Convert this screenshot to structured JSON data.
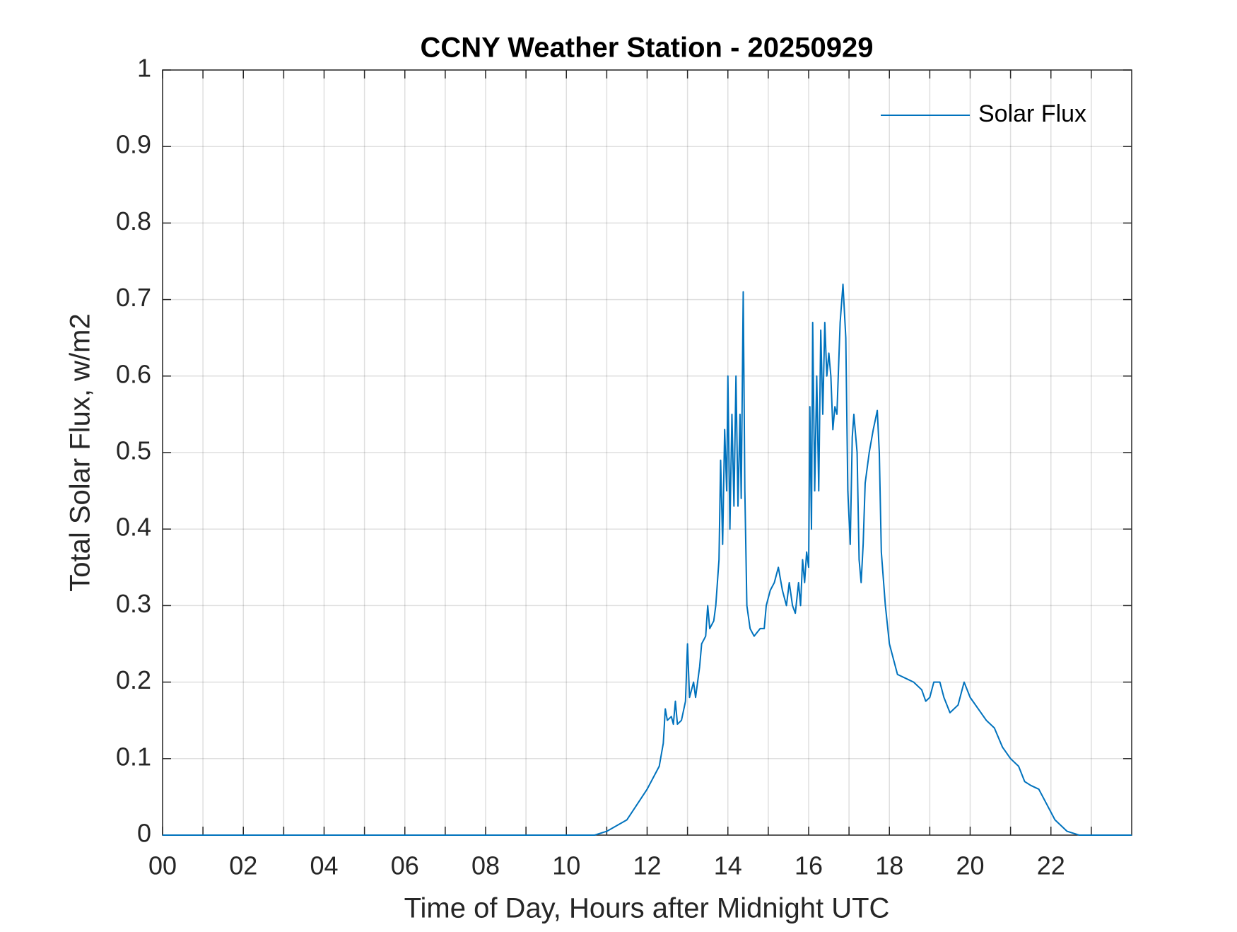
{
  "chart_data": {
    "type": "line",
    "title": "CCNY Weather Station - 20250929",
    "x_label": "Time of Day, Hours after Midnight UTC",
    "y_label": "Total Solar Flux, w/m2",
    "xlim": [
      0,
      24
    ],
    "xticks": [
      {
        "value": 0,
        "label": "00"
      },
      {
        "value": 2,
        "label": "02"
      },
      {
        "value": 4,
        "label": "04"
      },
      {
        "value": 6,
        "label": "06"
      },
      {
        "value": 8,
        "label": "08"
      },
      {
        "value": 10,
        "label": "10"
      },
      {
        "value": 12,
        "label": "12"
      },
      {
        "value": 14,
        "label": "14"
      },
      {
        "value": 16,
        "label": "16"
      },
      {
        "value": 18,
        "label": "18"
      },
      {
        "value": 20,
        "label": "20"
      },
      {
        "value": 22,
        "label": "22"
      }
    ],
    "xminor_ticks": [
      1,
      3,
      5,
      7,
      9,
      11,
      13,
      15,
      17,
      19,
      21,
      23
    ],
    "ylim": [
      0,
      1
    ],
    "yticks": [
      0,
      0.1,
      0.2,
      0.3,
      0.4,
      0.5,
      0.6,
      0.7,
      0.8,
      0.9,
      1
    ],
    "grid": true,
    "legend": "upper-right",
    "x": [
      0,
      10.7,
      11,
      11.5,
      12,
      12.3,
      12.4,
      12.45,
      12.5,
      12.6,
      12.65,
      12.7,
      12.75,
      12.85,
      12.95,
      13.0,
      13.05,
      13.15,
      13.2,
      13.3,
      13.35,
      13.45,
      13.5,
      13.55,
      13.65,
      13.7,
      13.78,
      13.82,
      13.87,
      13.92,
      13.97,
      14.0,
      14.05,
      14.1,
      14.15,
      14.2,
      14.25,
      14.3,
      14.33,
      14.38,
      14.42,
      14.47,
      14.55,
      14.65,
      14.8,
      14.9,
      14.95,
      15.05,
      15.15,
      15.25,
      15.35,
      15.45,
      15.52,
      15.6,
      15.67,
      15.75,
      15.8,
      15.85,
      15.9,
      15.95,
      16.0,
      16.03,
      16.07,
      16.1,
      16.15,
      16.2,
      16.25,
      16.3,
      16.35,
      16.4,
      16.45,
      16.5,
      16.55,
      16.6,
      16.65,
      16.7,
      16.78,
      16.85,
      16.92,
      16.97,
      17.03,
      17.08,
      17.12,
      17.2,
      17.25,
      17.3,
      17.35,
      17.4,
      17.5,
      17.6,
      17.7,
      17.75,
      17.8,
      17.9,
      18.0,
      18.1,
      18.2,
      18.4,
      18.6,
      18.8,
      18.9,
      19.0,
      19.1,
      19.25,
      19.35,
      19.5,
      19.7,
      19.85,
      20.0,
      20.2,
      20.4,
      20.6,
      20.8,
      21.0,
      21.2,
      21.35,
      21.5,
      21.7,
      21.9,
      22.1,
      22.4,
      22.7,
      24
    ],
    "series": [
      {
        "name": "Solar Flux",
        "color": "#0072bd",
        "values": [
          0,
          0,
          0.005,
          0.02,
          0.06,
          0.09,
          0.12,
          0.165,
          0.15,
          0.155,
          0.145,
          0.175,
          0.145,
          0.15,
          0.175,
          0.25,
          0.18,
          0.2,
          0.18,
          0.22,
          0.25,
          0.26,
          0.3,
          0.27,
          0.28,
          0.3,
          0.36,
          0.49,
          0.38,
          0.53,
          0.45,
          0.6,
          0.4,
          0.55,
          0.43,
          0.6,
          0.43,
          0.55,
          0.44,
          0.71,
          0.45,
          0.3,
          0.27,
          0.26,
          0.27,
          0.27,
          0.3,
          0.32,
          0.33,
          0.35,
          0.32,
          0.3,
          0.33,
          0.3,
          0.29,
          0.33,
          0.3,
          0.36,
          0.33,
          0.37,
          0.35,
          0.56,
          0.4,
          0.67,
          0.45,
          0.6,
          0.45,
          0.66,
          0.55,
          0.67,
          0.6,
          0.63,
          0.6,
          0.53,
          0.56,
          0.55,
          0.67,
          0.72,
          0.65,
          0.45,
          0.38,
          0.52,
          0.55,
          0.5,
          0.36,
          0.33,
          0.38,
          0.46,
          0.5,
          0.53,
          0.555,
          0.5,
          0.37,
          0.3,
          0.25,
          0.23,
          0.21,
          0.205,
          0.2,
          0.19,
          0.175,
          0.18,
          0.2,
          0.2,
          0.18,
          0.16,
          0.17,
          0.2,
          0.18,
          0.165,
          0.15,
          0.14,
          0.115,
          0.1,
          0.09,
          0.07,
          0.065,
          0.06,
          0.04,
          0.02,
          0.005,
          0,
          0
        ]
      }
    ]
  }
}
